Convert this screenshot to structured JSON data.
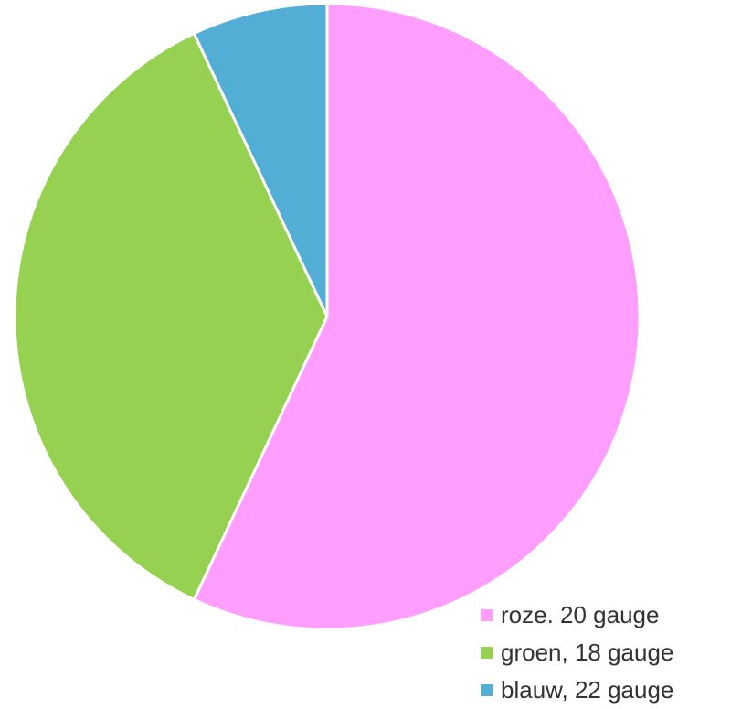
{
  "chart_data": {
    "type": "pie",
    "slices": [
      {
        "label": "roze. 20 gauge",
        "value": 57,
        "color": "#FF9EFF"
      },
      {
        "label": "groen, 18 gauge",
        "value": 36,
        "color": "#96D152"
      },
      {
        "label": "blauw, 22 gauge",
        "value": 7,
        "color": "#52AED4"
      }
    ],
    "legend_position": "bottom-right"
  }
}
